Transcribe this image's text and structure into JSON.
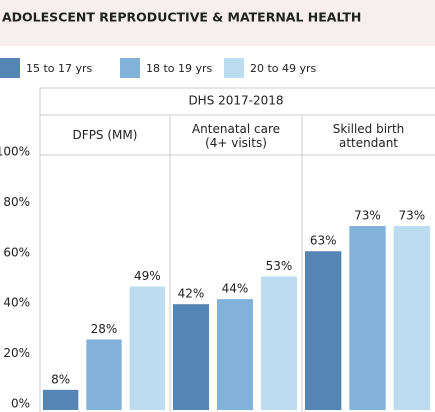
{
  "chart_data": {
    "type": "bar",
    "title": "ADOLESCENT REPRODUCTIVE & MATERNAL HEALTH",
    "header": "DHS 2017-2018",
    "categories": [
      "DFPS (MM)",
      "Antenatal care (4+ visits)",
      "Skilled birth attendant"
    ],
    "series": [
      {
        "name": "15 to 17 yrs",
        "color": "#5585b5",
        "values": [
          8,
          42,
          63
        ],
        "value_labels": [
          "8%",
          "42%",
          "63%"
        ]
      },
      {
        "name": "18 to 19 yrs",
        "color": "#82b1d9",
        "values": [
          28,
          44,
          73
        ],
        "value_labels": [
          "28%",
          "44%",
          "73%"
        ]
      },
      {
        "name": "20 to 49 yrs",
        "color": "#bddcf0",
        "values": [
          49,
          53,
          73
        ],
        "value_labels": [
          "49%",
          "53%",
          "73%"
        ]
      }
    ],
    "ylim": [
      0,
      100
    ],
    "yticks": [
      {
        "value": 0,
        "label": "0%"
      },
      {
        "value": 20,
        "label": "20%"
      },
      {
        "value": 40,
        "label": "40%"
      },
      {
        "value": 60,
        "label": "60%"
      },
      {
        "value": 80,
        "label": "80%"
      },
      {
        "value": 100,
        "label": "100%"
      }
    ]
  }
}
